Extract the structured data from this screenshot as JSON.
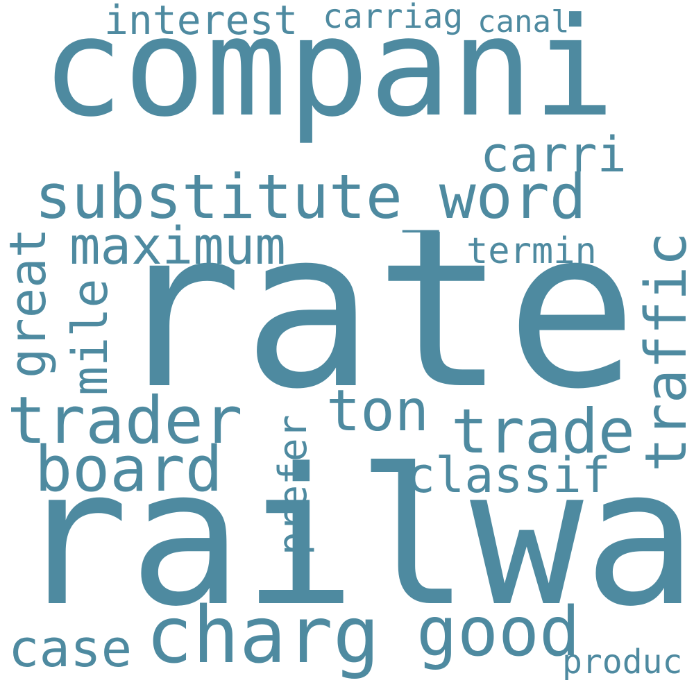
{
  "word_cloud": {
    "text_color": "#4e8aa0",
    "background": "#ffffff",
    "words": [
      "compani",
      "rate",
      "railway",
      "substitute_word",
      "interest",
      "carriag",
      "canal",
      "carri",
      "maximum",
      "termin",
      "great",
      "mile",
      "traffic",
      "trader",
      "ton",
      "trade",
      "board",
      "classif",
      "prefer",
      "charg",
      "good",
      "case",
      "produc"
    ]
  }
}
